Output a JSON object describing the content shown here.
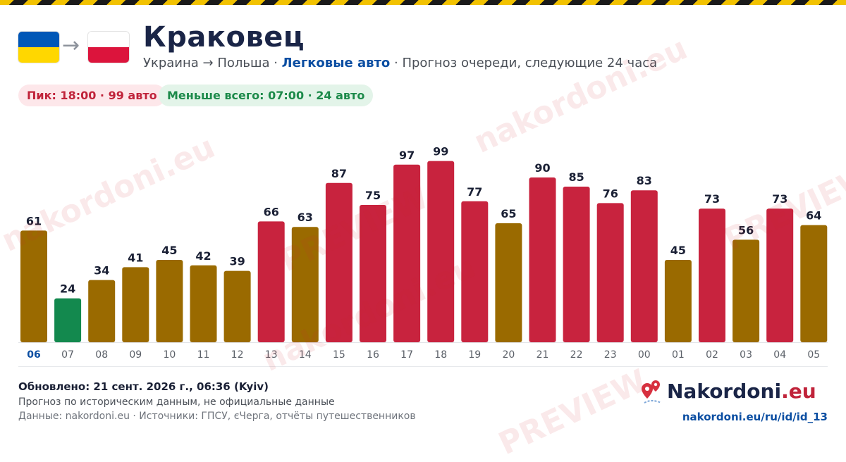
{
  "header": {
    "title": "Краковец",
    "route": "Украина → Польша · ",
    "vehicle": "Легковые авто",
    "desc": " · Прогноз очереди, следующие 24 часа",
    "arrow": "→"
  },
  "flags": {
    "from": {
      "name": "ukraine-flag",
      "top": "#0057b7",
      "bottom": "#ffd700"
    },
    "to": {
      "name": "poland-flag",
      "top": "#ffffff",
      "bottom": "#dc143c"
    }
  },
  "badges": {
    "peak": "Пик: 18:00 · 99 авто",
    "min": "Меньше всего: 07:00 · 24 авто"
  },
  "colors": {
    "high": "#c8233e",
    "medium": "#9a6a00",
    "low": "#13894e",
    "value_label": "#1a2035",
    "tick": "#5b6068",
    "tick_current": "#0b4ea2"
  },
  "chart_data": {
    "type": "bar",
    "title": "",
    "xlabel": "",
    "ylabel": "",
    "categories": [
      "06",
      "07",
      "08",
      "09",
      "10",
      "11",
      "12",
      "13",
      "14",
      "15",
      "16",
      "17",
      "18",
      "19",
      "20",
      "21",
      "22",
      "23",
      "00",
      "01",
      "02",
      "03",
      "04",
      "05"
    ],
    "values": [
      61,
      24,
      34,
      41,
      45,
      42,
      39,
      66,
      63,
      87,
      75,
      97,
      99,
      77,
      65,
      90,
      85,
      76,
      83,
      45,
      73,
      56,
      73,
      64
    ],
    "levels": [
      "medium",
      "low",
      "medium",
      "medium",
      "medium",
      "medium",
      "medium",
      "high",
      "medium",
      "high",
      "high",
      "high",
      "high",
      "high",
      "medium",
      "high",
      "high",
      "high",
      "high",
      "medium",
      "high",
      "medium",
      "high",
      "medium"
    ],
    "current_category": "06",
    "ylim": [
      0,
      100
    ],
    "grid": false,
    "legend": "none"
  },
  "footer": {
    "updated": "Обновлено: 21 сент. 2026 г., 06:36 (Kyiv)",
    "note": "Прогноз по историческим данным, не официальные данные",
    "sources": "Данные: nakordoni.eu · Источники: ГПСУ, єЧерга, отчёты путешественников",
    "brand_main": "Nakordoni",
    "brand_tld": ".eu",
    "url": "nakordoni.eu/ru/id/id_13"
  },
  "watermark": {
    "brand": "nakordoni.eu",
    "preview": "PREVIEW"
  }
}
